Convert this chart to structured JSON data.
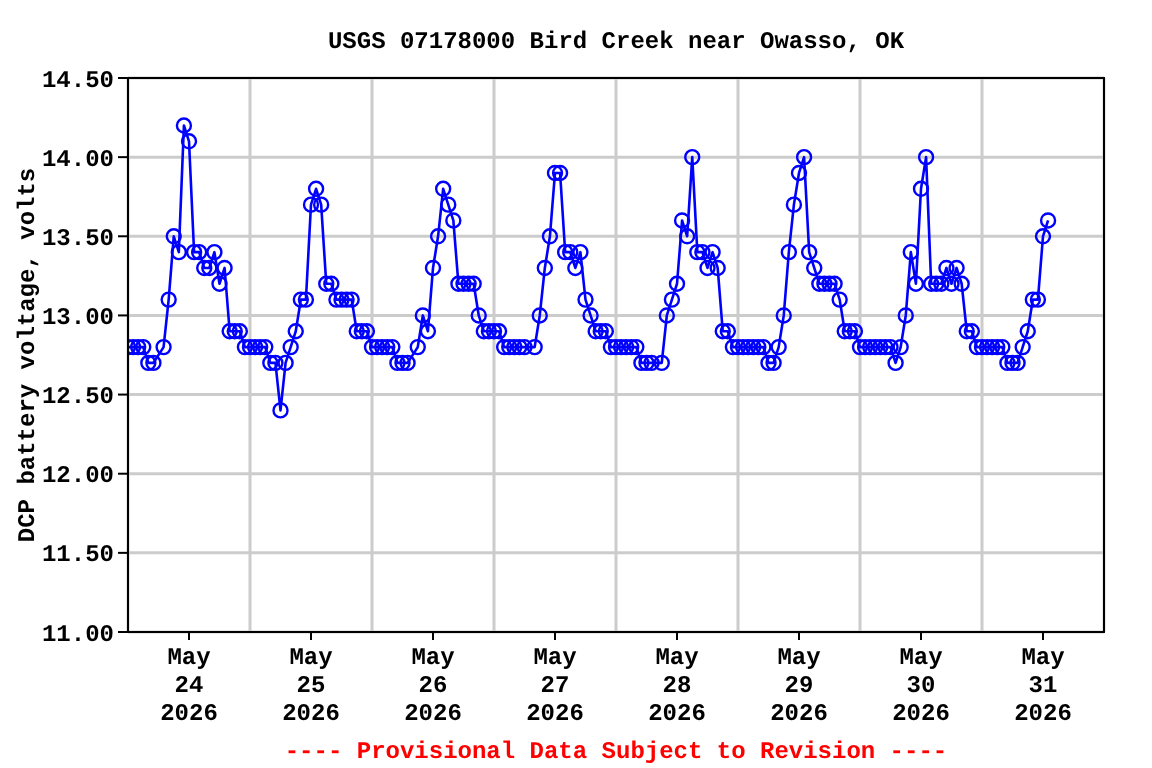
{
  "chart_data": {
    "type": "line",
    "title": "USGS 07178000 Bird Creek near Owasso, OK",
    "ylabel": "DCP battery voltage, volts",
    "annotations": [
      "---- Provisional Data Subject to Revision ----"
    ],
    "x": [
      "2026-05-24T00:00",
      "2026-05-24T01:00",
      "2026-05-24T02:00",
      "2026-05-24T03:00",
      "2026-05-24T04:00",
      "2026-05-24T05:00",
      "2026-05-24T07:00",
      "2026-05-24T08:00",
      "2026-05-24T09:00",
      "2026-05-24T10:00",
      "2026-05-24T11:00",
      "2026-05-24T12:00",
      "2026-05-24T13:00",
      "2026-05-24T14:00",
      "2026-05-24T15:00",
      "2026-05-24T16:00",
      "2026-05-24T17:00",
      "2026-05-24T18:00",
      "2026-05-24T19:00",
      "2026-05-24T20:00",
      "2026-05-24T21:00",
      "2026-05-24T22:00",
      "2026-05-24T23:00",
      "2026-05-25T00:00",
      "2026-05-25T01:00",
      "2026-05-25T02:00",
      "2026-05-25T03:00",
      "2026-05-25T04:00",
      "2026-05-25T05:00",
      "2026-05-25T06:00",
      "2026-05-25T07:00",
      "2026-05-25T08:00",
      "2026-05-25T09:00",
      "2026-05-25T10:00",
      "2026-05-25T11:00",
      "2026-05-25T12:00",
      "2026-05-25T13:00",
      "2026-05-25T14:00",
      "2026-05-25T15:00",
      "2026-05-25T16:00",
      "2026-05-25T17:00",
      "2026-05-25T18:00",
      "2026-05-25T19:00",
      "2026-05-25T20:00",
      "2026-05-25T21:00",
      "2026-05-25T22:00",
      "2026-05-25T23:00",
      "2026-05-26T00:00",
      "2026-05-26T01:00",
      "2026-05-26T02:00",
      "2026-05-26T03:00",
      "2026-05-26T04:00",
      "2026-05-26T05:00",
      "2026-05-26T06:00",
      "2026-05-26T07:00",
      "2026-05-26T09:00",
      "2026-05-26T10:00",
      "2026-05-26T11:00",
      "2026-05-26T12:00",
      "2026-05-26T13:00",
      "2026-05-26T14:00",
      "2026-05-26T15:00",
      "2026-05-26T16:00",
      "2026-05-26T17:00",
      "2026-05-26T18:00",
      "2026-05-26T19:00",
      "2026-05-26T20:00",
      "2026-05-26T21:00",
      "2026-05-26T22:00",
      "2026-05-26T23:00",
      "2026-05-27T00:00",
      "2026-05-27T01:00",
      "2026-05-27T02:00",
      "2026-05-27T03:00",
      "2026-05-27T04:00",
      "2026-05-27T05:00",
      "2026-05-27T06:00",
      "2026-05-27T08:00",
      "2026-05-27T09:00",
      "2026-05-27T10:00",
      "2026-05-27T11:00",
      "2026-05-27T12:00",
      "2026-05-27T13:00",
      "2026-05-27T14:00",
      "2026-05-27T15:00",
      "2026-05-27T16:00",
      "2026-05-27T17:00",
      "2026-05-27T18:00",
      "2026-05-27T19:00",
      "2026-05-27T20:00",
      "2026-05-27T21:00",
      "2026-05-27T22:00",
      "2026-05-27T23:00",
      "2026-05-28T00:00",
      "2026-05-28T01:00",
      "2026-05-28T02:00",
      "2026-05-28T03:00",
      "2026-05-28T04:00",
      "2026-05-28T05:00",
      "2026-05-28T06:00",
      "2026-05-28T07:00",
      "2026-05-28T09:00",
      "2026-05-28T10:00",
      "2026-05-28T11:00",
      "2026-05-28T12:00",
      "2026-05-28T13:00",
      "2026-05-28T14:00",
      "2026-05-28T15:00",
      "2026-05-28T16:00",
      "2026-05-28T17:00",
      "2026-05-28T18:00",
      "2026-05-28T19:00",
      "2026-05-28T20:00",
      "2026-05-28T21:00",
      "2026-05-28T22:00",
      "2026-05-28T23:00",
      "2026-05-29T00:00",
      "2026-05-29T01:00",
      "2026-05-29T02:00",
      "2026-05-29T03:00",
      "2026-05-29T04:00",
      "2026-05-29T05:00",
      "2026-05-29T06:00",
      "2026-05-29T07:00",
      "2026-05-29T08:00",
      "2026-05-29T09:00",
      "2026-05-29T10:00",
      "2026-05-29T11:00",
      "2026-05-29T12:00",
      "2026-05-29T13:00",
      "2026-05-29T14:00",
      "2026-05-29T15:00",
      "2026-05-29T16:00",
      "2026-05-29T17:00",
      "2026-05-29T18:00",
      "2026-05-29T19:00",
      "2026-05-29T20:00",
      "2026-05-29T21:00",
      "2026-05-29T22:00",
      "2026-05-29T23:00",
      "2026-05-30T00:00",
      "2026-05-30T01:00",
      "2026-05-30T02:00",
      "2026-05-30T03:00",
      "2026-05-30T04:00",
      "2026-05-30T05:00",
      "2026-05-30T06:00",
      "2026-05-30T07:00",
      "2026-05-30T08:00",
      "2026-05-30T09:00",
      "2026-05-30T10:00",
      "2026-05-30T11:00",
      "2026-05-30T12:00",
      "2026-05-30T13:00",
      "2026-05-30T14:00",
      "2026-05-30T15:00",
      "2026-05-30T16:00",
      "2026-05-30T17:00",
      "2026-05-30T18:00",
      "2026-05-30T19:00",
      "2026-05-30T20:00",
      "2026-05-30T21:00",
      "2026-05-30T22:00",
      "2026-05-30T23:00",
      "2026-05-31T00:00",
      "2026-05-31T01:00",
      "2026-05-31T02:00",
      "2026-05-31T03:00",
      "2026-05-31T04:00",
      "2026-05-31T05:00",
      "2026-05-31T06:00",
      "2026-05-31T07:00",
      "2026-05-31T08:00",
      "2026-05-31T09:00",
      "2026-05-31T10:00",
      "2026-05-31T11:00",
      "2026-05-31T12:00",
      "2026-05-31T13:00"
    ],
    "series": [
      {
        "color": "#0000ff",
        "values": [
          12.8,
          12.8,
          12.8,
          12.8,
          12.7,
          12.7,
          12.8,
          13.1,
          13.5,
          13.4,
          14.2,
          14.1,
          13.4,
          13.4,
          13.3,
          13.3,
          13.4,
          13.2,
          13.3,
          12.9,
          12.9,
          12.9,
          12.8,
          12.8,
          12.8,
          12.8,
          12.8,
          12.7,
          12.7,
          12.4,
          12.7,
          12.8,
          12.9,
          13.1,
          13.1,
          13.7,
          13.8,
          13.7,
          13.2,
          13.2,
          13.1,
          13.1,
          13.1,
          13.1,
          12.9,
          12.9,
          12.9,
          12.8,
          12.8,
          12.8,
          12.8,
          12.8,
          12.7,
          12.7,
          12.7,
          12.8,
          13.0,
          12.9,
          13.3,
          13.5,
          13.8,
          13.7,
          13.6,
          13.2,
          13.2,
          13.2,
          13.2,
          13.0,
          12.9,
          12.9,
          12.9,
          12.9,
          12.8,
          12.8,
          12.8,
          12.8,
          12.8,
          12.8,
          13.0,
          13.3,
          13.5,
          13.9,
          13.9,
          13.4,
          13.4,
          13.3,
          13.4,
          13.1,
          13.0,
          12.9,
          12.9,
          12.9,
          12.8,
          12.8,
          12.8,
          12.8,
          12.8,
          12.8,
          12.7,
          12.7,
          12.7,
          12.7,
          13.0,
          13.1,
          13.2,
          13.6,
          13.5,
          14.0,
          13.4,
          13.4,
          13.3,
          13.4,
          13.3,
          12.9,
          12.9,
          12.8,
          12.8,
          12.8,
          12.8,
          12.8,
          12.8,
          12.8,
          12.7,
          12.7,
          12.8,
          13.0,
          13.4,
          13.7,
          13.9,
          14.0,
          13.4,
          13.3,
          13.2,
          13.2,
          13.2,
          13.2,
          13.1,
          12.9,
          12.9,
          12.9,
          12.8,
          12.8,
          12.8,
          12.8,
          12.8,
          12.8,
          12.8,
          12.7,
          12.8,
          13.0,
          13.4,
          13.2,
          13.8,
          14.0,
          13.2,
          13.2,
          13.2,
          13.3,
          13.2,
          13.3,
          13.2,
          12.9,
          12.9,
          12.8,
          12.8,
          12.8,
          12.8,
          12.8,
          12.8,
          12.7,
          12.7,
          12.7,
          12.8,
          12.9,
          13.1,
          13.1,
          13.5,
          13.6
        ]
      }
    ],
    "xlim": [
      "2026-05-24T00:00",
      "2026-06-01T00:00"
    ],
    "xticks": [
      {
        "value": "2026-05-24T00:00",
        "label": null
      },
      {
        "value": "2026-05-24T12:00",
        "label": "May 24 2026"
      },
      {
        "value": "2026-05-25T00:00",
        "label": null
      },
      {
        "value": "2026-05-25T12:00",
        "label": "May 25 2026"
      },
      {
        "value": "2026-05-26T00:00",
        "label": null
      },
      {
        "value": "2026-05-26T12:00",
        "label": "May 26 2026"
      },
      {
        "value": "2026-05-27T00:00",
        "label": null
      },
      {
        "value": "2026-05-27T12:00",
        "label": "May 27 2026"
      },
      {
        "value": "2026-05-28T00:00",
        "label": null
      },
      {
        "value": "2026-05-28T12:00",
        "label": "May 28 2026"
      },
      {
        "value": "2026-05-29T00:00",
        "label": null
      },
      {
        "value": "2026-05-29T12:00",
        "label": "May 29 2026"
      },
      {
        "value": "2026-05-30T00:00",
        "label": null
      },
      {
        "value": "2026-05-30T12:00",
        "label": "May 30 2026"
      },
      {
        "value": "2026-05-31T00:00",
        "label": null
      },
      {
        "value": "2026-05-31T12:00",
        "label": "May 31 2026"
      },
      {
        "value": "2026-06-01T00:00",
        "label": null
      }
    ],
    "ylim": [
      11.0,
      14.5
    ],
    "yticks": [
      {
        "value": 11.0,
        "label": "11.00"
      },
      {
        "value": 11.5,
        "label": "11.50"
      },
      {
        "value": 12.0,
        "label": "12.00"
      },
      {
        "value": 12.5,
        "label": "12.50"
      },
      {
        "value": 13.0,
        "label": "13.00"
      },
      {
        "value": 13.5,
        "label": "13.50"
      },
      {
        "value": 14.0,
        "label": "14.00"
      },
      {
        "value": 14.5,
        "label": "14.50"
      }
    ],
    "grid": true,
    "marker": "circle",
    "line_style": "solid"
  }
}
